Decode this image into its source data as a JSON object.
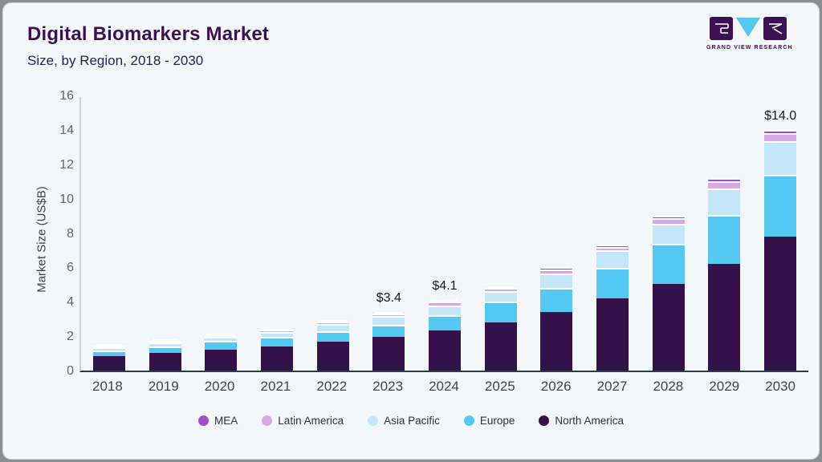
{
  "header": {
    "title": "Digital Biomarkers Market",
    "subtitle": "Size, by Region, 2018 - 2030"
  },
  "logo": {
    "text": "GRAND VIEW RESEARCH",
    "square_color": "#3c1053",
    "triangle_color": "#56c7f1"
  },
  "chart_data": {
    "type": "bar",
    "stacked": true,
    "title": "Digital Biomarkers Market",
    "subtitle": "Size, by Region, 2018 - 2030",
    "ylabel": "Market Size (US$B)",
    "xlabel": "",
    "ylim": [
      0,
      16
    ],
    "yticks": [
      0,
      2,
      4,
      6,
      8,
      10,
      12,
      14,
      16
    ],
    "grid": false,
    "legend_position": "bottom",
    "categories": [
      "2018",
      "2019",
      "2020",
      "2021",
      "2022",
      "2023",
      "2024",
      "2025",
      "2026",
      "2027",
      "2028",
      "2029",
      "2030"
    ],
    "series": [
      {
        "name": "North America",
        "color": "#341148",
        "values": [
          0.85,
          1.02,
          1.22,
          1.38,
          1.68,
          1.95,
          2.32,
          2.8,
          3.4,
          4.2,
          5.05,
          6.2,
          7.8
        ]
      },
      {
        "name": "Europe",
        "color": "#55c8f1",
        "values": [
          0.32,
          0.4,
          0.5,
          0.6,
          0.62,
          0.73,
          0.9,
          1.2,
          1.4,
          1.78,
          2.3,
          2.85,
          3.6
        ]
      },
      {
        "name": "Asia Pacific",
        "color": "#c3e6f8",
        "values": [
          0.17,
          0.2,
          0.23,
          0.28,
          0.4,
          0.5,
          0.58,
          0.6,
          0.85,
          1.0,
          1.2,
          1.55,
          1.95
        ]
      },
      {
        "name": "Latin America",
        "color": "#d5a8e8",
        "values": [
          0.07,
          0.1,
          0.1,
          0.13,
          0.14,
          0.14,
          0.2,
          0.2,
          0.25,
          0.22,
          0.3,
          0.42,
          0.45
        ]
      },
      {
        "name": "MEA",
        "color": "#9c50c8",
        "values": [
          0.04,
          0.05,
          0.05,
          0.06,
          0.06,
          0.08,
          0.1,
          0.1,
          0.1,
          0.12,
          0.15,
          0.2,
          0.2
        ]
      }
    ],
    "value_labels": {
      "2023": "$3.4",
      "2024": "$4.1",
      "2030": "$14.0"
    },
    "legend": [
      "MEA",
      "Latin America",
      "Asia Pacific",
      "Europe",
      "North America"
    ]
  }
}
